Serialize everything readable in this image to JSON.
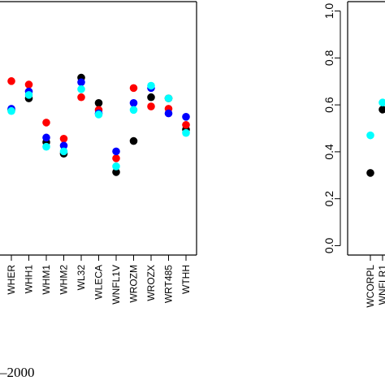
{
  "chart_data": [
    {
      "type": "scatter",
      "title": "",
      "xlabel": "",
      "ylabel": "",
      "ylim": [
        0,
        1.1
      ],
      "grid": false,
      "categories": [
        "WHER",
        "WHH1",
        "WHM1",
        "WHM2",
        "WL32",
        "WLECA",
        "WNFL1V",
        "WROZM",
        "WROZX",
        "WRT485",
        "WTHH"
      ],
      "series": [
        {
          "color": "#000000",
          "values": [
            0.63,
            0.68,
            0.49,
            0.44,
            0.77,
            0.66,
            0.36,
            0.495,
            0.685,
            0.68,
            0.545
          ]
        },
        {
          "color": "#ff0000",
          "values": [
            0.755,
            0.74,
            0.575,
            0.505,
            0.685,
            0.63,
            0.42,
            0.725,
            0.645,
            0.635,
            0.565
          ]
        },
        {
          "color": "#0000ff",
          "values": [
            0.635,
            0.71,
            0.51,
            0.475,
            0.75,
            0.615,
            0.45,
            0.66,
            0.725,
            0.615,
            0.6
          ]
        },
        {
          "color": "#00ffff",
          "values": [
            0.625,
            0.695,
            0.47,
            0.45,
            0.72,
            0.61,
            0.385,
            0.63,
            0.735,
            0.68,
            0.53
          ]
        }
      ]
    },
    {
      "type": "scatter",
      "title": "",
      "xlabel": "",
      "ylabel": "",
      "ylim": [
        -0.04,
        1.04
      ],
      "grid": false,
      "yticks": [
        "0.0",
        "0.2",
        "0.4",
        "0.6",
        "0.8",
        "1.0"
      ],
      "categories": [
        "WCORPL",
        "WNFLR1"
      ],
      "series": [
        {
          "color": "#000000",
          "values": [
            0.31,
            0.58
          ]
        },
        {
          "color": "#00ffff",
          "values": [
            0.47,
            0.61
          ]
        }
      ]
    }
  ],
  "caption_fragment": "–2000"
}
